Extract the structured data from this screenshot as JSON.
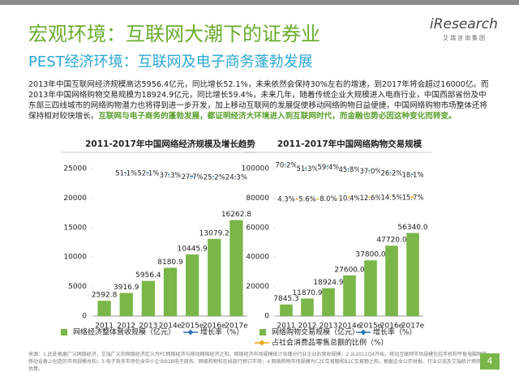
{
  "header": {
    "title": "宏观环境：互联网大潮下的证券业",
    "subtitle": "PEST经济环境：互联网及电子商务蓬勃发展",
    "logo": "iResearch",
    "logo_sub": "艾瑞咨询集团"
  },
  "body": {
    "text": "2013年中国互联网经济规模高达5956.4亿元，同比增长52.1%，未来依然会保持30%左右的增速，到2017年将会超过16000亿。而2013年中国网络购物交易规模为18924.9亿元，同比增长59.4%，未来几年，随着传统企业大规模进入电商行业，中国西部省份及中东部三四线城市的网络购物潜力也将得到进一步开发，加上移动互联网的发展促使移动网络购物日益便捷，中国网络购物市场整体还将保持相对较快增长。",
    "highlight": "互联网与电子商务的蓬勃发展，都证明经济大环境进入到互联网时代，而金融也势必因这种变化而转变。"
  },
  "chart_data": [
    {
      "type": "bar",
      "title": "2011-2017年中国网络经济规模及增长趋势",
      "categories": [
        "2011",
        "2012",
        "2013",
        "2014e",
        "2015e",
        "2016e",
        "2017e"
      ],
      "series": [
        {
          "name": "网络经济整体营收规模（亿元）",
          "type": "bar",
          "color": "#7ab648",
          "values": [
            2592.8,
            3916.9,
            5956.4,
            8180.9,
            10445.9,
            13079.2,
            16262.8
          ]
        },
        {
          "name": "增长率（%）",
          "type": "line",
          "color": "#2e75b6",
          "values": [
            null,
            51.1,
            52.1,
            37.3,
            27.7,
            25.2,
            24.3
          ],
          "value_labels": [
            null,
            "51.1%",
            "52.1%",
            "37.3%",
            "27.7%",
            "25.2%",
            "24.3%"
          ]
        }
      ],
      "ylim": [
        0,
        25000
      ],
      "yticks": [
        0,
        5000,
        10000,
        15000,
        20000,
        25000
      ],
      "grid": false
    },
    {
      "type": "bar",
      "title": "2011-2017年中国网络购物交易规模",
      "categories": [
        "2011",
        "2012",
        "2013",
        "2014e",
        "2015e",
        "2016e",
        "2017e"
      ],
      "series": [
        {
          "name": "网络购物交易规模（亿元）",
          "type": "bar",
          "color": "#7ab648",
          "values": [
            7845.3,
            11870.9,
            18924.9,
            27600.0,
            37800.0,
            47720.0,
            56340.0
          ],
          "value_labels": [
            "7845.3",
            "11870.9",
            "18924.9",
            "27600.0",
            "37800.0",
            "47720.0",
            "56340.0"
          ]
        },
        {
          "name": "增长率（%）",
          "type": "line",
          "color": "#2e75b6",
          "values": [
            70.2,
            51.3,
            59.4,
            45.8,
            37.0,
            26.2,
            18.1
          ],
          "value_labels": [
            "70.2%",
            "51.3%",
            "59.4%",
            "45.8%",
            "37.0%",
            "26.2%",
            "18.1%"
          ]
        },
        {
          "name": "占社会消费品零售总额的比例（%）",
          "type": "line",
          "color": "#f0a30a",
          "values": [
            4.3,
            5.6,
            8.0,
            10.4,
            12.6,
            14.5,
            15.7
          ],
          "value_labels": [
            "4.3%",
            "5.6%",
            "8.0%",
            "10.4%",
            "12.6%",
            "14.5%",
            "15.7%"
          ]
        }
      ],
      "ylim": [
        0,
        100000
      ],
      "yticks": [
        0,
        20000,
        40000,
        60000,
        80000,
        100000
      ],
      "grid": false
    }
  ],
  "footer": {
    "source": "来源：1.此处根据广义网络经济，艾瑞广义的网络经济定义为PC网络经济与移动网络经济之和。网络经济市场规模统计各细分行业企业的营收规模；2.从2011Q4开始，移动互联网市场规模包括手机和平板电脑网络移动设备上创造的市场规模总和；3.电子商务市场包含中小企业B2B电子商务、网络购物和在线旅行预订市场；4.网络购物市场规模为C2C交易额和B2C交易额之和。根据企业公开财报、行业访谈及艾瑞统计预测模型估算。",
    "page": "4"
  }
}
